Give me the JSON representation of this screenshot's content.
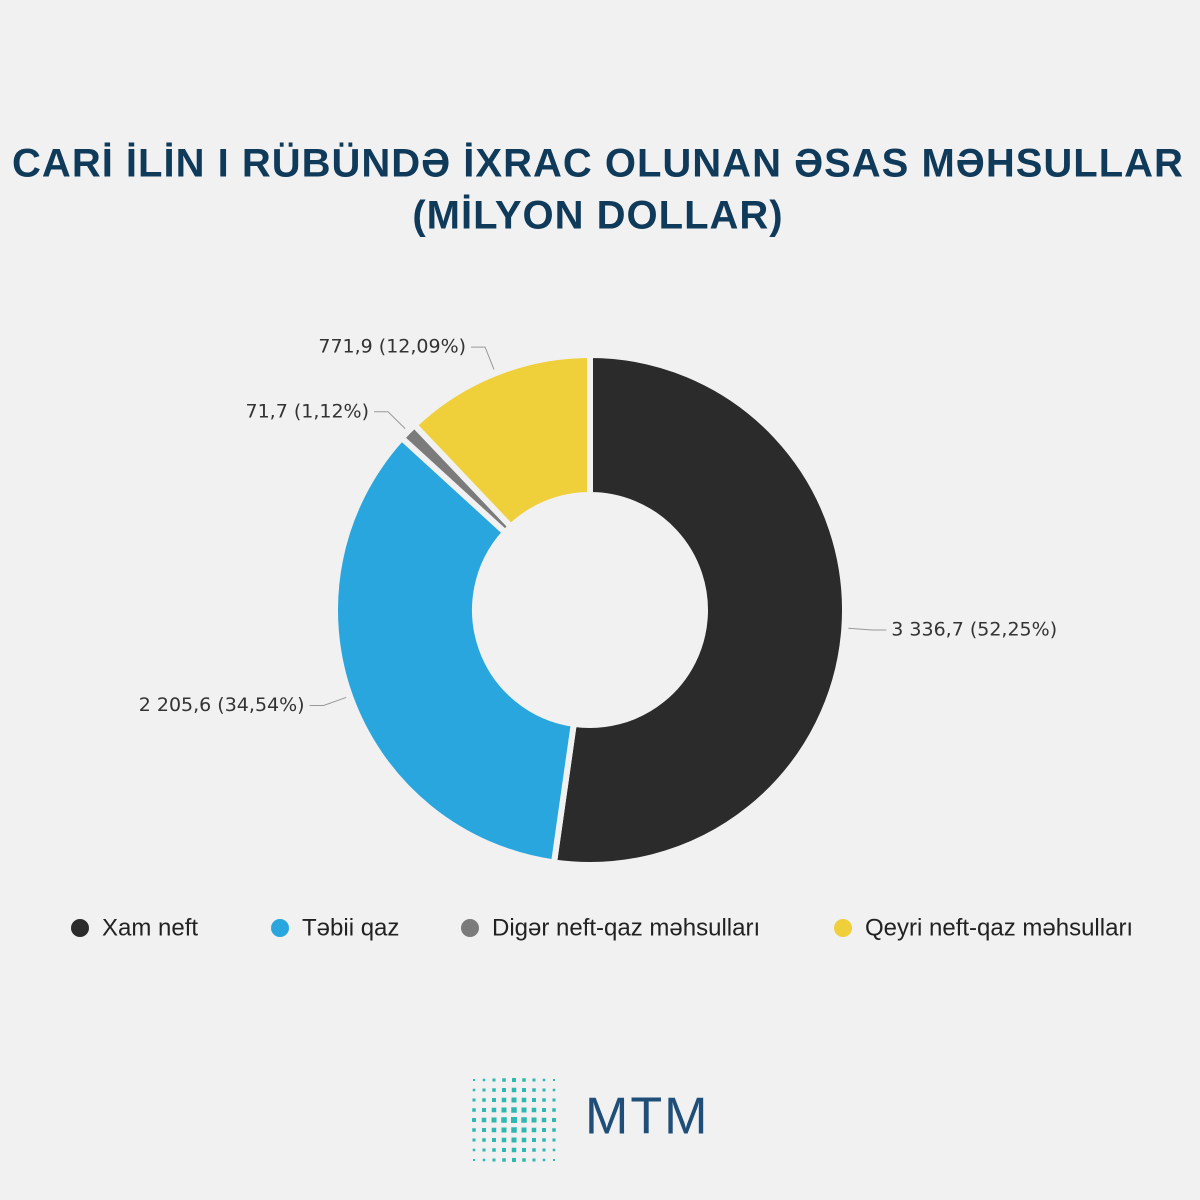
{
  "chart_data": {
    "type": "donut",
    "title": "CARİ İLİN I RÜBÜNDƏ İXRAC OLUNAN ƏSAS MƏHSULLAR",
    "subtitle": "(MİLYON DOLLAR)",
    "categories": [
      "Xam neft",
      "Təbii qaz",
      "Digər neft-qaz məhsulları",
      "Qeyri neft-qaz məhsulları"
    ],
    "values": [
      3336.7,
      2205.6,
      71.7,
      771.9
    ],
    "value_labels": [
      "3 336,7 (52,25%)",
      "2 205,6 (34,54%)",
      "71,7 (1,12%)",
      "771,9 (12,09%)"
    ],
    "colors": [
      "#2b2b2b",
      "#2aa6df",
      "#7b7b7b",
      "#efcf3a"
    ]
  },
  "logo": {
    "text": "MTM"
  }
}
